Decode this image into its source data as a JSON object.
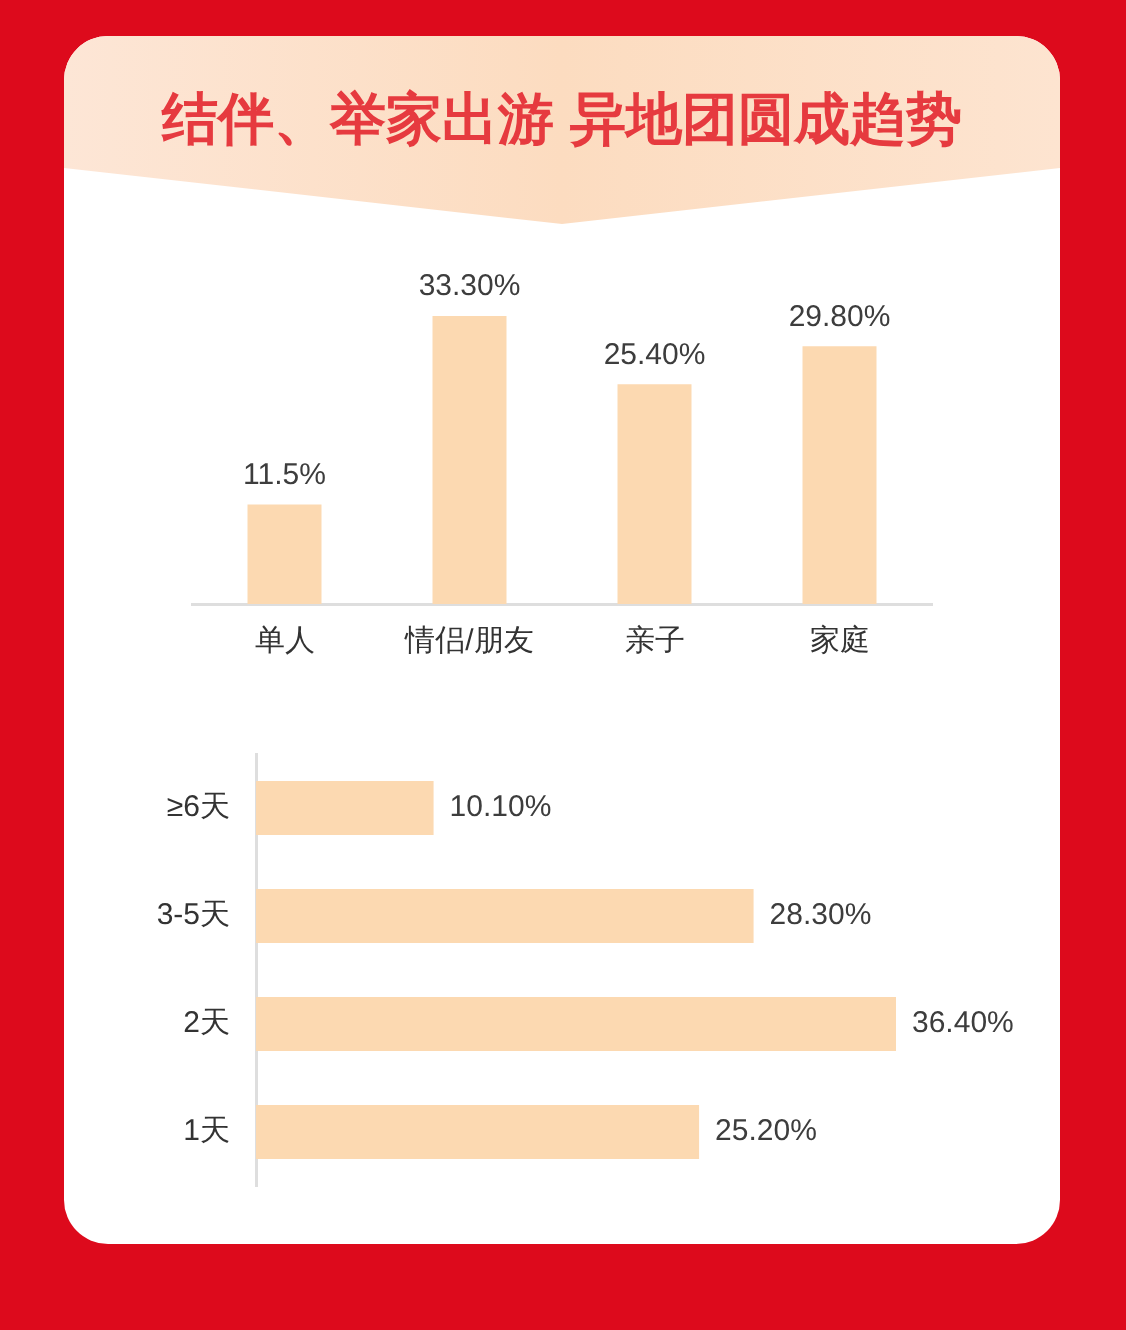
{
  "chart_data": [
    {
      "type": "bar",
      "title": "结伴、举家出游 异地团圆成趋势",
      "categories": [
        "单人",
        "情侣/朋友",
        "亲子",
        "家庭"
      ],
      "values": [
        11.5,
        33.3,
        25.4,
        29.8
      ],
      "value_labels": [
        "11.5%",
        "33.30%",
        "25.40%",
        "29.80%"
      ],
      "color": "#fcd9b1"
    },
    {
      "type": "bar",
      "orientation": "horizontal",
      "categories": [
        "≥6天",
        "3-5天",
        "2天",
        "1天"
      ],
      "values": [
        10.1,
        28.3,
        36.4,
        25.2
      ],
      "value_labels": [
        "10.10%",
        "28.30%",
        "36.40%",
        "25.20%"
      ],
      "color": "#fcd9b1"
    }
  ]
}
